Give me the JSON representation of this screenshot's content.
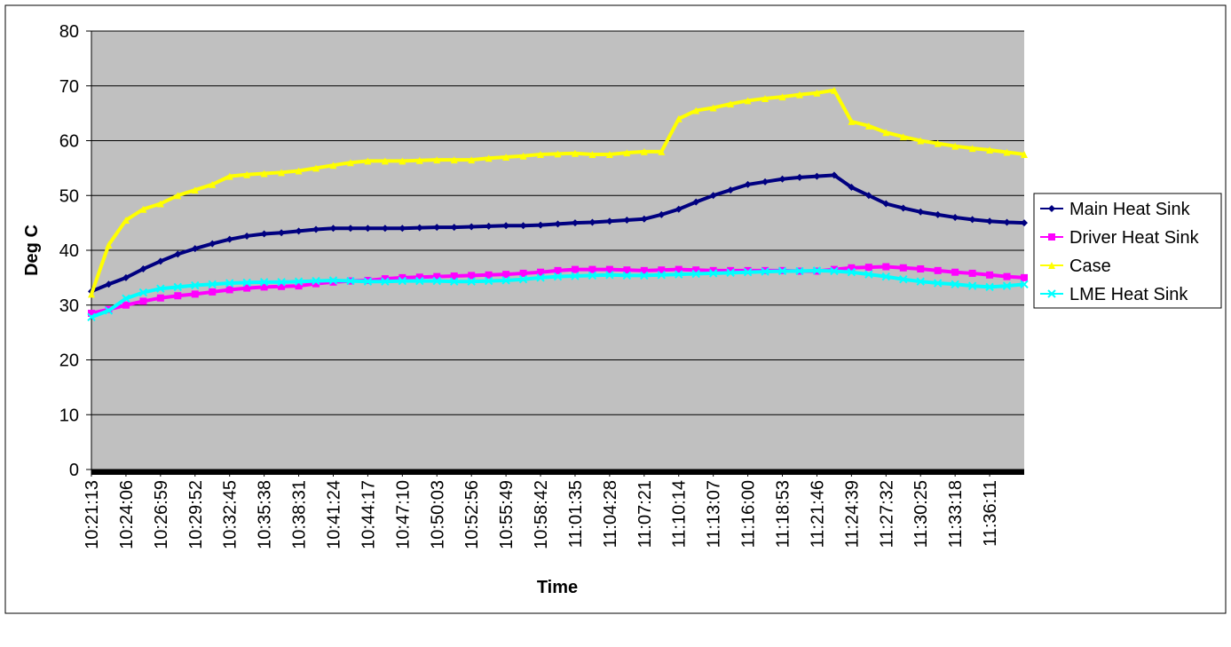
{
  "chart_data": {
    "type": "line",
    "x_label": "Time",
    "y_label": "Deg C",
    "categories": [
      "10:21:13",
      null,
      "10:24:06",
      null,
      "10:26:59",
      null,
      "10:29:52",
      null,
      "10:32:45",
      null,
      "10:35:38",
      null,
      "10:38:31",
      null,
      "10:41:24",
      null,
      "10:44:17",
      null,
      "10:47:10",
      null,
      "10:50:03",
      null,
      "10:52:56",
      null,
      "10:55:49",
      null,
      "10:58:42",
      null,
      "11:01:35",
      null,
      "11:04:28",
      null,
      "11:07:21",
      null,
      "11:10:14",
      null,
      "11:13:07",
      null,
      "11:16:00",
      null,
      "11:18:53",
      null,
      "11:21:46",
      null,
      "11:24:39",
      null,
      "11:27:32",
      null,
      "11:30:25",
      null,
      "11:33:18",
      null,
      "11:36:11",
      null,
      null
    ],
    "series": [
      {
        "name": "Main Heat Sink",
        "color": "#000080",
        "marker": "diamond",
        "values": [
          32.5,
          33.8,
          35,
          36.6,
          38,
          39.3,
          40.3,
          41.2,
          42,
          42.6,
          43,
          43.2,
          43.5,
          43.8,
          44,
          44,
          44,
          44,
          44,
          44.1,
          44.2,
          44.2,
          44.3,
          44.4,
          44.5,
          44.5,
          44.6,
          44.8,
          45,
          45.1,
          45.3,
          45.5,
          45.7,
          46.5,
          47.5,
          48.8,
          50,
          51,
          52,
          52.5,
          53,
          53.3,
          53.5,
          53.7,
          51.5,
          50,
          48.5,
          47.7,
          47,
          46.5,
          46,
          45.6,
          45.3,
          45.1,
          45
        ]
      },
      {
        "name": "Driver Heat Sink",
        "color": "#ff00ff",
        "marker": "square",
        "values": [
          28.5,
          29.2,
          30,
          30.7,
          31.3,
          31.7,
          32,
          32.4,
          32.8,
          33.1,
          33.3,
          33.4,
          33.5,
          33.9,
          34.2,
          34.4,
          34.5,
          34.8,
          35,
          35.1,
          35.2,
          35.3,
          35.4,
          35.5,
          35.6,
          35.8,
          36,
          36.3,
          36.5,
          36.5,
          36.5,
          36.4,
          36.3,
          36.4,
          36.5,
          36.4,
          36.3,
          36.3,
          36.3,
          36.3,
          36.3,
          36.2,
          36.2,
          36.5,
          36.8,
          36.9,
          37,
          36.8,
          36.6,
          36.3,
          36,
          35.8,
          35.5,
          35.2,
          35
        ]
      },
      {
        "name": "Case",
        "color": "#ffff00",
        "marker": "triangle",
        "values": [
          32,
          41,
          45.5,
          47.5,
          48.5,
          50,
          51,
          52,
          53.5,
          53.8,
          54,
          54.2,
          54.5,
          55,
          55.5,
          56,
          56.3,
          56.3,
          56.3,
          56.4,
          56.5,
          56.5,
          56.5,
          56.8,
          57,
          57.2,
          57.5,
          57.6,
          57.7,
          57.5,
          57.5,
          57.8,
          58,
          58,
          64,
          65.5,
          66,
          66.7,
          67.3,
          67.7,
          68,
          68.4,
          68.7,
          69.2,
          63.5,
          62.7,
          61.5,
          60.7,
          60,
          59.5,
          59,
          58.6,
          58.3,
          57.9,
          57.5
        ]
      },
      {
        "name": "LME Heat Sink",
        "color": "#00ffff",
        "marker": "x",
        "values": [
          27.8,
          29,
          31.2,
          32.3,
          33,
          33.3,
          33.6,
          33.8,
          34,
          34.1,
          34.2,
          34.2,
          34.3,
          34.4,
          34.5,
          34.4,
          34.3,
          34.3,
          34.4,
          34.4,
          34.4,
          34.3,
          34.3,
          34.4,
          34.5,
          34.7,
          35,
          35.2,
          35.3,
          35.4,
          35.5,
          35.4,
          35.4,
          35.5,
          35.6,
          35.7,
          35.8,
          35.9,
          36,
          36.1,
          36.2,
          36.2,
          36.3,
          36.2,
          36,
          35.6,
          35.2,
          34.7,
          34.3,
          34,
          33.8,
          33.5,
          33.3,
          33.5,
          33.8
        ]
      }
    ],
    "ylim": [
      0,
      80
    ],
    "yticks": [
      0,
      10,
      20,
      30,
      40,
      50,
      60,
      70,
      80
    ],
    "grid": true,
    "plot_background": "#c0c0c0",
    "legend": "right"
  }
}
